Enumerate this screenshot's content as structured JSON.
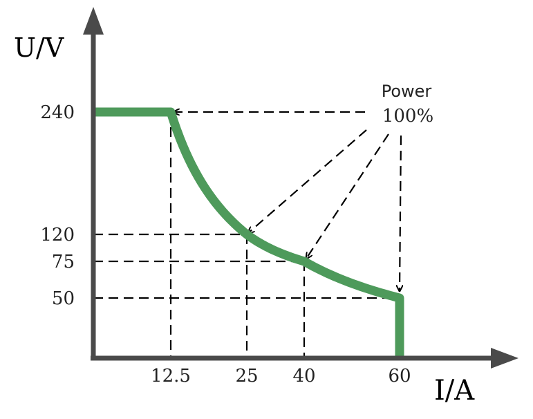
{
  "chart_data": {
    "type": "line",
    "ylabel": "U/V",
    "xlabel": "I/A",
    "xticks": [
      "12.5",
      "25",
      "40",
      "60"
    ],
    "yticks": [
      "240",
      "120",
      "75",
      "50"
    ],
    "series": [
      {
        "values": [
          {
            "x": 0,
            "y": 240
          },
          {
            "x": 12.5,
            "y": 240
          },
          {
            "x": 25,
            "y": 120
          },
          {
            "x": 40,
            "y": 75
          },
          {
            "x": 60,
            "y": 50
          },
          {
            "x": 60,
            "y": 0
          }
        ]
      }
    ],
    "annotation": {
      "line1": "Power",
      "line2": "100%"
    },
    "colors": {
      "curve": "#4e9a5b",
      "axis": "#4a4a4a",
      "guide": "#000000"
    }
  }
}
